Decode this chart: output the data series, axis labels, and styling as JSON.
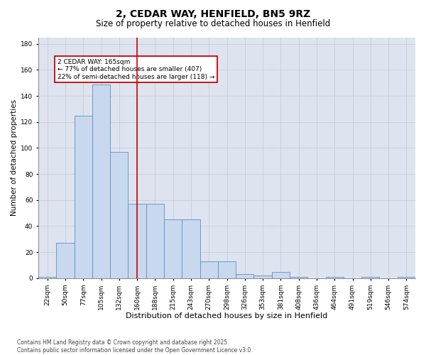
{
  "title": "2, CEDAR WAY, HENFIELD, BN5 9RZ",
  "subtitle": "Size of property relative to detached houses in Henfield",
  "xlabel": "Distribution of detached houses by size in Henfield",
  "ylabel": "Number of detached properties",
  "categories": [
    "22sqm",
    "50sqm",
    "77sqm",
    "105sqm",
    "132sqm",
    "160sqm",
    "188sqm",
    "215sqm",
    "243sqm",
    "270sqm",
    "298sqm",
    "326sqm",
    "353sqm",
    "381sqm",
    "408sqm",
    "436sqm",
    "464sqm",
    "491sqm",
    "519sqm",
    "546sqm",
    "574sqm"
  ],
  "values": [
    1,
    27,
    125,
    149,
    97,
    57,
    57,
    45,
    45,
    13,
    13,
    3,
    2,
    5,
    1,
    0,
    1,
    0,
    1,
    0,
    1
  ],
  "bar_color": "#c8d8ee",
  "bar_edge_color": "#6090c0",
  "vline_color": "#cc0000",
  "annotation_text": "2 CEDAR WAY: 165sqm\n← 77% of detached houses are smaller (407)\n22% of semi-detached houses are larger (118) →",
  "annotation_box_color": "#cc0000",
  "ylim": [
    0,
    185
  ],
  "yticks": [
    0,
    20,
    40,
    60,
    80,
    100,
    120,
    140,
    160,
    180
  ],
  "grid_color": "#c8ccd8",
  "bg_color": "#dde4f0",
  "footnote": "Contains HM Land Registry data © Crown copyright and database right 2025.\nContains public sector information licensed under the Open Government Licence v3.0.",
  "title_fontsize": 10,
  "subtitle_fontsize": 8.5,
  "xlabel_fontsize": 8,
  "ylabel_fontsize": 7.5,
  "tick_fontsize": 6.5,
  "footnote_fontsize": 5.5
}
